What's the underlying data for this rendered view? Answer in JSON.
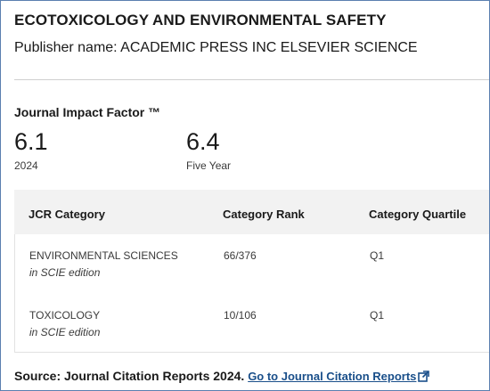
{
  "journal": {
    "title": "ECOTOXICOLOGY AND ENVIRONMENTAL SAFETY",
    "publisher": "Publisher name: ACADEMIC PRESS INC ELSEVIER SCIENCE"
  },
  "impact_factor": {
    "heading": "Journal Impact Factor ™",
    "metrics": [
      {
        "value": "6.1",
        "label": "2024"
      },
      {
        "value": "6.4",
        "label": "Five Year"
      }
    ]
  },
  "jcr": {
    "headers": [
      "JCR Category",
      "Category Rank",
      "Category Quartile"
    ],
    "rows": [
      {
        "category": "ENVIRONMENTAL SCIENCES",
        "edition": "in SCIE edition",
        "rank": "66/376",
        "quartile": "Q1"
      },
      {
        "category": "TOXICOLOGY",
        "edition": "in SCIE edition",
        "rank": "10/106",
        "quartile": "Q1"
      }
    ]
  },
  "source": {
    "label": "Source: Journal Citation Reports",
    "year": "2024.",
    "link_text": "Go to Journal Citation Reports",
    "link_icon": "external-link-icon"
  },
  "colors": {
    "link": "#1a4f8a",
    "border": "#5b7fb0",
    "header_bg": "#f2f2f2"
  }
}
